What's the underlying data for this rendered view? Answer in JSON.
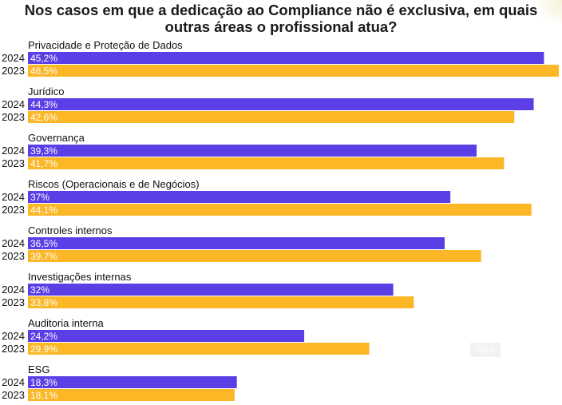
{
  "chart_data": {
    "type": "bar",
    "orientation": "horizontal",
    "title": "Nos casos em que a dedicação ao Compliance não é exclusiva, em quais outras áreas o profissional atua?",
    "title_lines": [
      "Nos casos em que a dedicação ao Compliance não é exclusiva, em quais",
      "outras áreas o profissional atua?"
    ],
    "categories": [
      "Privacidade e Proteção de Dados",
      "Jurídico",
      "Governança",
      "Riscos (Operacionais e de Negócios)",
      "Controles internos",
      "Investigações internas",
      "Auditoria interna",
      "ESG"
    ],
    "series": [
      {
        "name": "2024",
        "color": "#5b3ee6",
        "values": [
          45.2,
          44.3,
          39.3,
          37,
          36.5,
          32,
          24.2,
          18.3
        ],
        "labels": [
          "45,2%",
          "44,3%",
          "39,3%",
          "37%",
          "36,5%",
          "32%",
          "24,2%",
          "18,3%"
        ]
      },
      {
        "name": "2023",
        "color": "#fbb726",
        "values": [
          46.5,
          42.6,
          41.7,
          44.1,
          39.7,
          33.8,
          29.9,
          18.1
        ],
        "labels": [
          "46,5%",
          "42,6%",
          "41,7%",
          "44,1%",
          "39,7%",
          "33,8%",
          "29,9%",
          "18,1%"
        ]
      }
    ],
    "xlim": [
      0,
      46.5
    ],
    "grid": false,
    "legend": "none"
  },
  "ui": {
    "save_label": "Save"
  }
}
